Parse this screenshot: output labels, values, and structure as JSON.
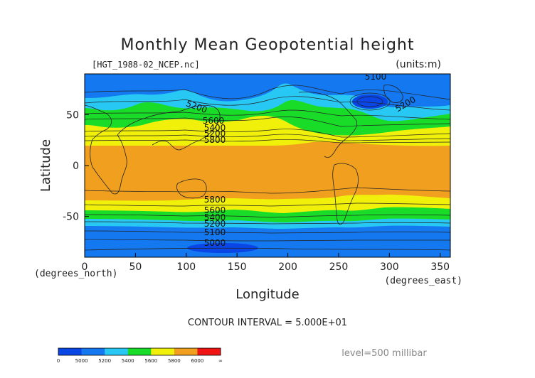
{
  "chart_data": {
    "type": "heatmap",
    "title": "Monthly Mean Geopotential height",
    "subtitle": "[HGT_1988-02_NCEP.nc]",
    "units": "(units:m)",
    "xlabel": "Longitude",
    "ylabel": "Latitude",
    "x_unit_label": "(degrees_east)",
    "y_unit_label": "(degrees_north)",
    "xlim": [
      0,
      360
    ],
    "ylim": [
      -90,
      90
    ],
    "x_ticks": [
      "0",
      "50",
      "100",
      "150",
      "200",
      "250",
      "300",
      "350"
    ],
    "y_ticks": [
      "50",
      "0",
      "-50"
    ],
    "contour_interval": "CONTOUR INTERVAL = 5.000E+01",
    "level": "level=500 millibar",
    "contour_labels": [
      "5100",
      "5200",
      "5800",
      "5600",
      "5400",
      "5200",
      "5800",
      "5000",
      "5800",
      "5600",
      "5400",
      "5200",
      "5100",
      "5000"
    ],
    "colorbar": {
      "tick_labels": [
        "0",
        "5000",
        "5200",
        "5400",
        "5600",
        "5800",
        "6000",
        "∞"
      ],
      "colors": [
        "#0a46e6",
        "#1478f0",
        "#28c8f5",
        "#19dc28",
        "#f0f00a",
        "#f0a01e",
        "#f01414"
      ]
    },
    "zones": [
      {
        "lat_north": 90,
        "lat_south": 72,
        "band": "5000-5200"
      },
      {
        "lat_north": 72,
        "lat_south": 55,
        "band": "5200-5400"
      },
      {
        "lat_north": 55,
        "lat_south": 45,
        "band": "5400-5600"
      },
      {
        "lat_north": 45,
        "lat_south": 35,
        "band": "5600-5800"
      },
      {
        "lat_north": 35,
        "lat_south": 20,
        "band": "5800-5900"
      },
      {
        "lat_north": 20,
        "lat_south": -18,
        "band": "5800-6000"
      },
      {
        "lat_north": -18,
        "lat_south": -33,
        "band": "5800-5900"
      },
      {
        "lat_north": -33,
        "lat_south": -43,
        "band": "5600-5800"
      },
      {
        "lat_north": -43,
        "lat_south": -52,
        "band": "5400-5600"
      },
      {
        "lat_north": -52,
        "lat_south": -62,
        "band": "5200-5400"
      },
      {
        "lat_north": -62,
        "lat_south": -90,
        "band": "5000-5200"
      }
    ]
  }
}
